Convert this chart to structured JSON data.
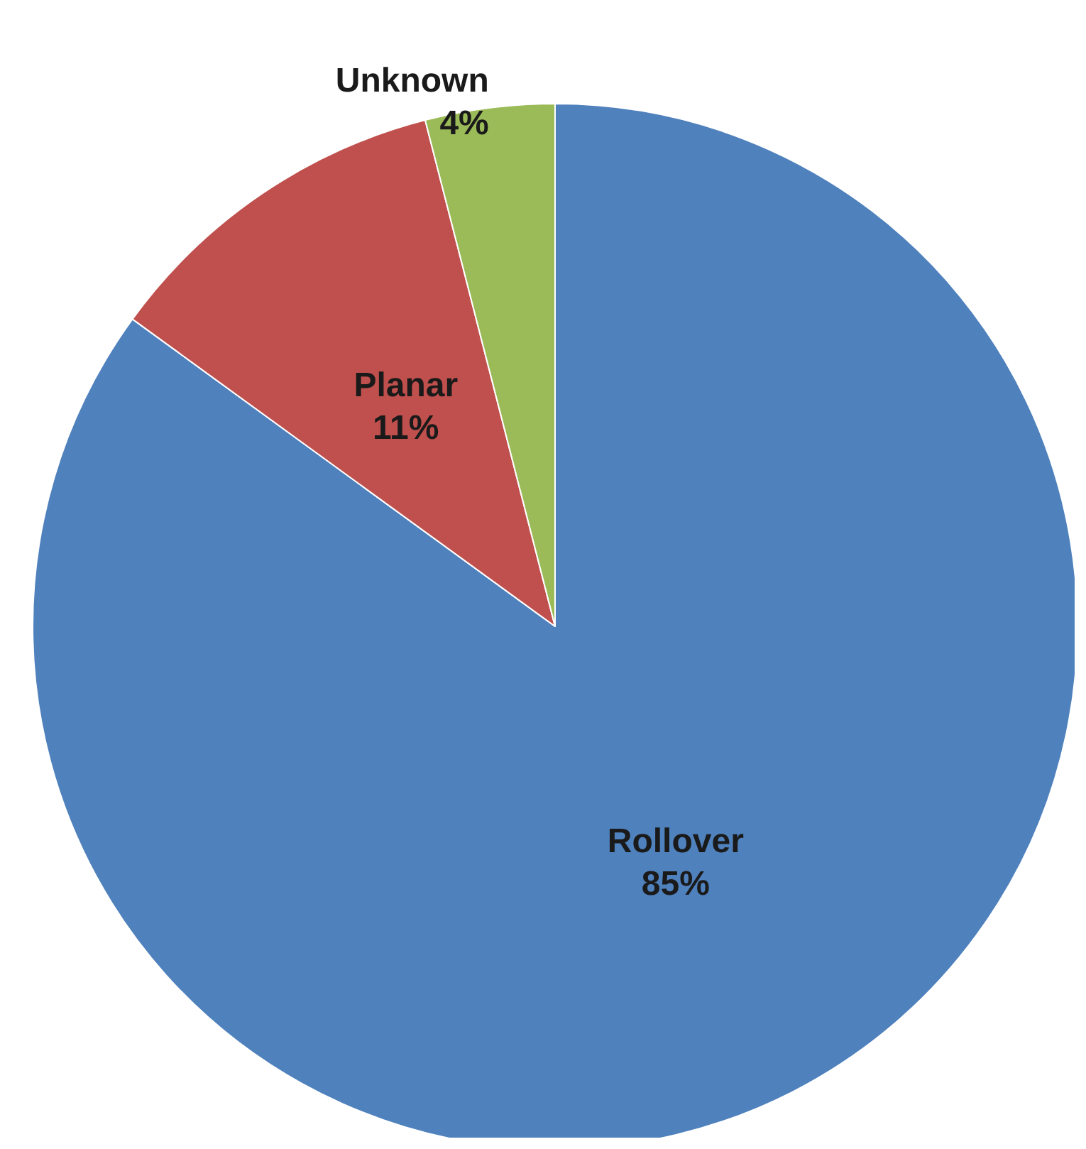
{
  "chart_data": {
    "type": "pie",
    "categories": [
      "Rollover",
      "Planar",
      "Unknown"
    ],
    "values": [
      85,
      11,
      4
    ],
    "value_labels": [
      "85%",
      "11%",
      "4%"
    ],
    "colors": [
      "#4f81bd",
      "#c0504d",
      "#9bbb59"
    ],
    "legend": false
  }
}
